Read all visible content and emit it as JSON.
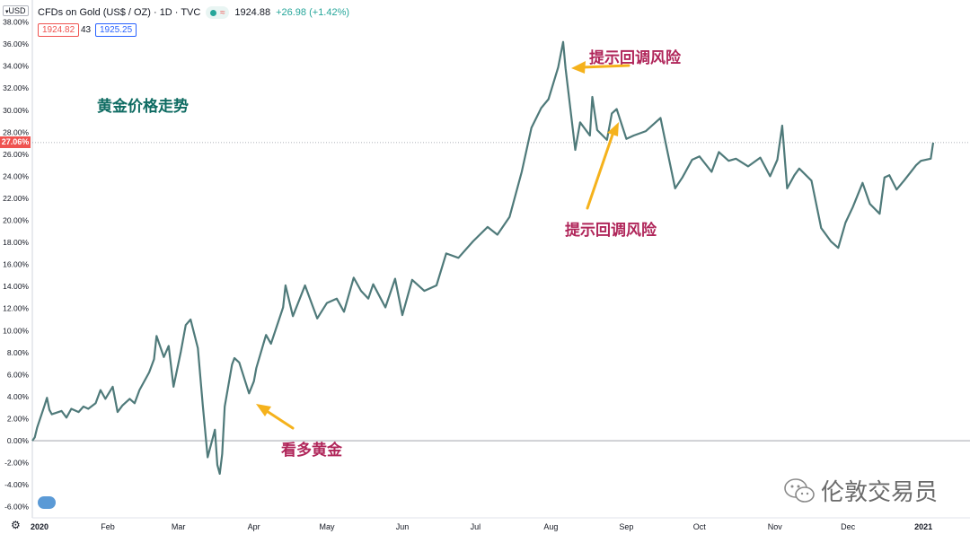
{
  "header": {
    "symbol": "CFDs on Gold (US$ / OZ) · 1D · TVC",
    "last": "1924.88",
    "change": "+26.98 (+1.42%)",
    "bid": "1924.82",
    "volume": "43",
    "ask": "1925.25",
    "currency": "USD"
  },
  "current_tag": "27.06%",
  "annotations": {
    "title": "黄金价格走势",
    "risk_top": "提示回调风险",
    "risk_bottom": "提示回调风险",
    "bullish": "看多黄金"
  },
  "watermark": "伦敦交易员",
  "colors": {
    "line": "#4f7a7a",
    "title": "#0e6b62",
    "annotation": "#b0265a",
    "arrow": "#f5b21c",
    "tag": "#ef5350"
  },
  "chart_data": {
    "type": "line",
    "y_unit": "percent",
    "ylim": [
      -7,
      40
    ],
    "yticks": [
      -6,
      -4,
      -2,
      0,
      2,
      4,
      6,
      8,
      10,
      12,
      14,
      16,
      18,
      20,
      22,
      24,
      26,
      28,
      30,
      32,
      34,
      36,
      38
    ],
    "ytick_labels": [
      "-6.00%",
      "-4.00%",
      "-2.00%",
      "0.00%",
      "2.00%",
      "4.00%",
      "6.00%",
      "8.00%",
      "10.00%",
      "12.00%",
      "14.00%",
      "16.00%",
      "18.00%",
      "20.00%",
      "22.00%",
      "24.00%",
      "26.00%",
      "28.00%",
      "30.00%",
      "32.00%",
      "34.00%",
      "36.00%",
      "38.00%"
    ],
    "xlim": [
      "2020-01-01",
      "2021-01-05"
    ],
    "x_ticks": [
      {
        "label": "2020",
        "date": "2020-01-01"
      },
      {
        "label": "Feb",
        "date": "2020-02-01"
      },
      {
        "label": "Mar",
        "date": "2020-03-01"
      },
      {
        "label": "Apr",
        "date": "2020-04-01"
      },
      {
        "label": "May",
        "date": "2020-05-01"
      },
      {
        "label": "Jun",
        "date": "2020-06-01"
      },
      {
        "label": "Jul",
        "date": "2020-07-01"
      },
      {
        "label": "Aug",
        "date": "2020-08-01"
      },
      {
        "label": "Sep",
        "date": "2020-09-01"
      },
      {
        "label": "Oct",
        "date": "2020-10-01"
      },
      {
        "label": "Nov",
        "date": "2020-11-01"
      },
      {
        "label": "Dec",
        "date": "2020-12-01"
      },
      {
        "label": "2021",
        "date": "2021-01-01"
      }
    ],
    "x": [
      "2020-01-01",
      "2020-01-02",
      "2020-01-03",
      "2020-01-06",
      "2020-01-07",
      "2020-01-08",
      "2020-01-09",
      "2020-01-13",
      "2020-01-15",
      "2020-01-17",
      "2020-01-20",
      "2020-01-22",
      "2020-01-24",
      "2020-01-27",
      "2020-01-29",
      "2020-01-31",
      "2020-02-03",
      "2020-02-05",
      "2020-02-07",
      "2020-02-10",
      "2020-02-12",
      "2020-02-14",
      "2020-02-18",
      "2020-02-20",
      "2020-02-21",
      "2020-02-24",
      "2020-02-26",
      "2020-02-28",
      "2020-03-02",
      "2020-03-04",
      "2020-03-06",
      "2020-03-09",
      "2020-03-11",
      "2020-03-13",
      "2020-03-16",
      "2020-03-17",
      "2020-03-18",
      "2020-03-19",
      "2020-03-20",
      "2020-03-23",
      "2020-03-24",
      "2020-03-26",
      "2020-03-30",
      "2020-04-01",
      "2020-04-02",
      "2020-04-06",
      "2020-04-08",
      "2020-04-13",
      "2020-04-14",
      "2020-04-17",
      "2020-04-22",
      "2020-04-27",
      "2020-05-01",
      "2020-05-05",
      "2020-05-08",
      "2020-05-12",
      "2020-05-15",
      "2020-05-18",
      "2020-05-20",
      "2020-05-25",
      "2020-05-29",
      "2020-06-01",
      "2020-06-05",
      "2020-06-10",
      "2020-06-15",
      "2020-06-19",
      "2020-06-24",
      "2020-06-30",
      "2020-07-06",
      "2020-07-10",
      "2020-07-15",
      "2020-07-20",
      "2020-07-24",
      "2020-07-28",
      "2020-07-31",
      "2020-08-04",
      "2020-08-06",
      "2020-08-07",
      "2020-08-11",
      "2020-08-13",
      "2020-08-17",
      "2020-08-18",
      "2020-08-20",
      "2020-08-24",
      "2020-08-26",
      "2020-08-28",
      "2020-09-01",
      "2020-09-04",
      "2020-09-09",
      "2020-09-15",
      "2020-09-18",
      "2020-09-21",
      "2020-09-24",
      "2020-09-28",
      "2020-10-01",
      "2020-10-06",
      "2020-10-09",
      "2020-10-13",
      "2020-10-16",
      "2020-10-21",
      "2020-10-26",
      "2020-10-30",
      "2020-11-02",
      "2020-11-04",
      "2020-11-06",
      "2020-11-09",
      "2020-11-11",
      "2020-11-16",
      "2020-11-20",
      "2020-11-24",
      "2020-11-27",
      "2020-11-30",
      "2020-12-03",
      "2020-12-07",
      "2020-12-10",
      "2020-12-14",
      "2020-12-16",
      "2020-12-18",
      "2020-12-21",
      "2020-12-24",
      "2020-12-29",
      "2020-12-31",
      "2021-01-04",
      "2021-01-05"
    ],
    "values": [
      0,
      0.3,
      1.2,
      3.2,
      3.9,
      2.8,
      2.4,
      2.7,
      2.1,
      2.9,
      2.6,
      3.1,
      2.9,
      3.4,
      4.6,
      3.8,
      4.9,
      2.6,
      3.2,
      3.8,
      3.4,
      4.6,
      6.2,
      7.4,
      9.5,
      7.6,
      8.6,
      4.9,
      8.1,
      10.5,
      11.0,
      8.4,
      3.2,
      -1.5,
      1.0,
      -2.2,
      -3.0,
      -1.2,
      3.1,
      6.9,
      7.5,
      7.1,
      4.3,
      5.4,
      6.6,
      9.6,
      8.8,
      12.1,
      14.1,
      11.3,
      14.1,
      11.1,
      12.5,
      12.9,
      11.7,
      14.8,
      13.6,
      12.9,
      14.2,
      12.1,
      14.7,
      11.4,
      14.6,
      13.6,
      14.1,
      17.0,
      16.6,
      18.1,
      19.4,
      18.7,
      20.3,
      24.4,
      28.4,
      30.2,
      31.0,
      33.9,
      36.2,
      33.8,
      26.4,
      28.9,
      27.7,
      31.2,
      28.2,
      27.3,
      29.7,
      30.1,
      27.4,
      27.7,
      28.1,
      29.3,
      26.1,
      22.9,
      23.9,
      25.5,
      25.8,
      24.4,
      26.2,
      25.4,
      25.6,
      24.9,
      25.7,
      24.0,
      25.5,
      28.6,
      22.9,
      24.1,
      24.7,
      23.6,
      19.3,
      18.1,
      17.5,
      19.8,
      21.2,
      23.4,
      21.5,
      20.6,
      23.9,
      24.1,
      22.8,
      23.6,
      25.0,
      25.4,
      25.6,
      27.06
    ]
  }
}
